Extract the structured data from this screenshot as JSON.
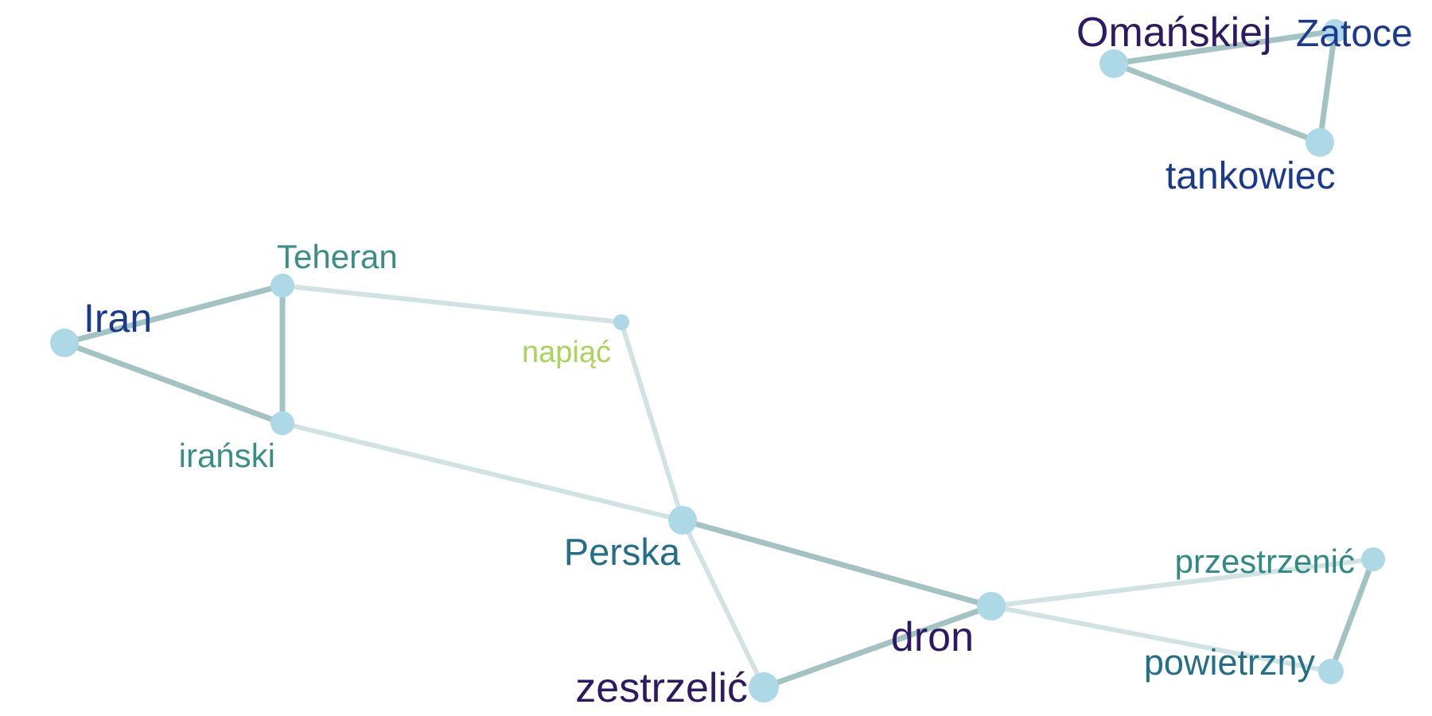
{
  "graph": {
    "node_color": "#add8e6",
    "nodes": [
      {
        "id": "omanskiej",
        "label": "Omańskiej",
        "color": "#2d1a63",
        "weight": 3
      },
      {
        "id": "zatoce",
        "label": "Zatoce",
        "color": "#1a3a8f",
        "weight": 2
      },
      {
        "id": "tankowiec",
        "label": "tankowiec",
        "color": "#1a3a8f",
        "weight": 2
      },
      {
        "id": "teheran",
        "label": "Teheran",
        "color": "#3a8f84",
        "weight": 2
      },
      {
        "id": "iran",
        "label": "Iran",
        "color": "#1a3a8f",
        "weight": 3
      },
      {
        "id": "napiac",
        "label": "napiąć",
        "color": "#a8d45a",
        "weight": 1
      },
      {
        "id": "iranski",
        "label": "irański",
        "color": "#3a8f84",
        "weight": 2
      },
      {
        "id": "perska",
        "label": "Perska",
        "color": "#236f88",
        "weight": 2
      },
      {
        "id": "przestrzenic",
        "label": "przestrzenić",
        "color": "#2f8a86",
        "weight": 2
      },
      {
        "id": "dron",
        "label": "dron",
        "color": "#2d1a63",
        "weight": 3
      },
      {
        "id": "powietrzny",
        "label": "powietrzny",
        "color": "#236f88",
        "weight": 2
      },
      {
        "id": "zestrzelic",
        "label": "zestrzelić",
        "color": "#2d1a63",
        "weight": 3
      }
    ],
    "edges": [
      {
        "source": "omanskiej",
        "target": "zatoce",
        "strength": "strong"
      },
      {
        "source": "omanskiej",
        "target": "tankowiec",
        "strength": "strong"
      },
      {
        "source": "zatoce",
        "target": "tankowiec",
        "strength": "strong"
      },
      {
        "source": "iran",
        "target": "teheran",
        "strength": "strong"
      },
      {
        "source": "iran",
        "target": "iranski",
        "strength": "strong"
      },
      {
        "source": "teheran",
        "target": "iranski",
        "strength": "strong"
      },
      {
        "source": "teheran",
        "target": "napiac",
        "strength": "weak"
      },
      {
        "source": "napiac",
        "target": "perska",
        "strength": "weak"
      },
      {
        "source": "iranski",
        "target": "perska",
        "strength": "weak"
      },
      {
        "source": "perska",
        "target": "dron",
        "strength": "strong"
      },
      {
        "source": "perska",
        "target": "zestrzelic",
        "strength": "weak"
      },
      {
        "source": "zestrzelic",
        "target": "dron",
        "strength": "strong"
      },
      {
        "source": "dron",
        "target": "przestrzenic",
        "strength": "weak"
      },
      {
        "source": "dron",
        "target": "powietrzny",
        "strength": "weak"
      },
      {
        "source": "przestrzenic",
        "target": "powietrzny",
        "strength": "strong"
      }
    ],
    "edge_colors": {
      "strong": "#a3c3c3",
      "weak": "#d1e2e2"
    }
  }
}
